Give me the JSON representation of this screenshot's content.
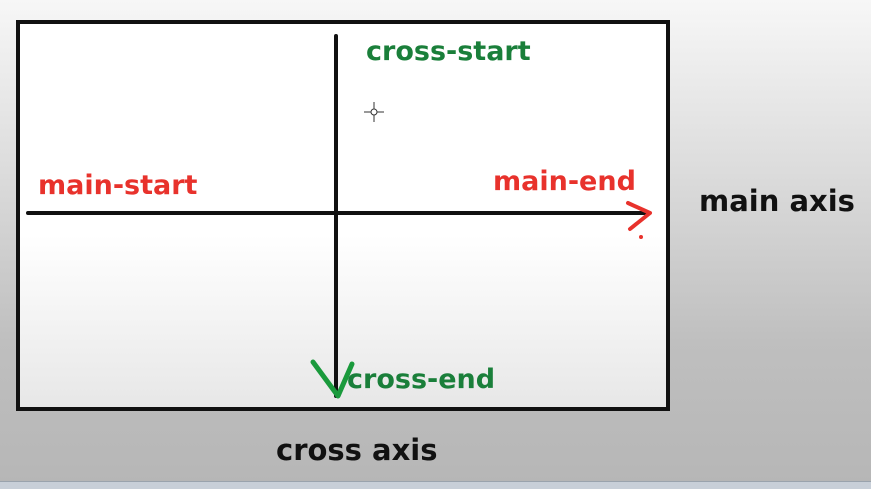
{
  "diagram": {
    "main_start": "main-start",
    "main_end": "main-end",
    "cross_start": "cross-start",
    "cross_end": "cross-end",
    "main_axis": "main axis",
    "cross_axis": "cross axis"
  },
  "colors": {
    "main_labels": "#e8322c",
    "cross_labels": "#1a7f3a",
    "axis_lines": "#111111",
    "annotation_red": "#e8322c",
    "annotation_green": "#1a9a3c"
  }
}
